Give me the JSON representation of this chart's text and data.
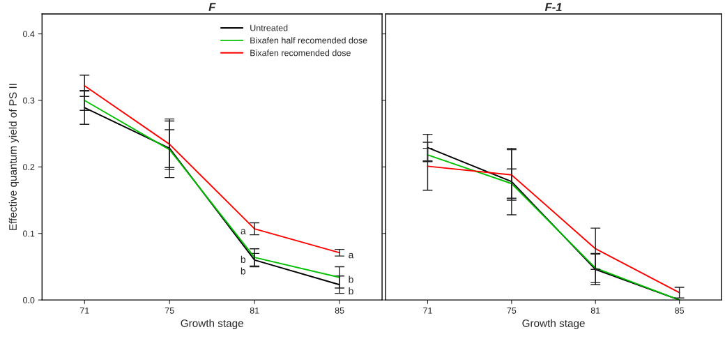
{
  "chart_data": [
    {
      "type": "line",
      "title": "F",
      "xlabel": "Growth stage",
      "ylabel": "Effective quantum yield of PS II",
      "categories": [
        "71",
        "75",
        "81",
        "85"
      ],
      "ylim": [
        0,
        0.43
      ],
      "yticks": [
        {
          "value": 0,
          "label": "0.0"
        },
        0.1,
        0.2,
        0.3,
        0.4
      ],
      "legend": "top right",
      "grid": false,
      "series": [
        {
          "name": "Untreated",
          "color": "#000000",
          "values": [
            0.289,
            0.228,
            0.06,
            0.023
          ],
          "errors": [
            0.025,
            0.044,
            0.01,
            0.013
          ]
        },
        {
          "name": "Bixafen half recomended dose",
          "color": "#00c000",
          "values": [
            0.3,
            0.226,
            0.064,
            0.034
          ],
          "errors": [
            0.015,
            0.03,
            0.013,
            0.016
          ]
        },
        {
          "name": "Bixafen recomended dose",
          "color": "#ff0000",
          "values": [
            0.322,
            0.234,
            0.107,
            0.071
          ],
          "errors": [
            0.016,
            0.035,
            0.009,
            0.005
          ]
        }
      ],
      "annotations": [
        {
          "text": "a",
          "x": "81",
          "y": 0.107
        },
        {
          "text": "b",
          "x": "81",
          "y": 0.064
        },
        {
          "text": "b",
          "x": "81",
          "y": 0.06
        },
        {
          "text": "a",
          "x": "85",
          "y": 0.071
        },
        {
          "text": "b",
          "x": "85",
          "y": 0.034
        },
        {
          "text": "b",
          "x": "85",
          "y": 0.023
        }
      ]
    },
    {
      "type": "line",
      "title": "F-1",
      "xlabel": "Growth stage",
      "categories": [
        "71",
        "75",
        "81",
        "85"
      ],
      "ylim": [
        0,
        0.43
      ],
      "yticks": [
        0,
        0.1,
        0.2,
        0.3,
        0.4
      ],
      "tick_labels": "x",
      "grid": false,
      "series": [
        {
          "color": "#000000",
          "values": [
            0.229,
            0.178,
            0.046,
            0.0
          ],
          "errors": [
            0.02,
            0.05,
            0.023,
            null
          ]
        },
        {
          "color": "#00c000",
          "values": [
            0.218,
            0.175,
            0.048,
            0.0
          ],
          "errors": [
            0.01,
            0.022,
            0.022,
            null
          ]
        },
        {
          "color": "#ff0000",
          "values": [
            0.201,
            0.188,
            0.077,
            0.011
          ],
          "errors": [
            0.036,
            0.038,
            0.031,
            0.008
          ]
        }
      ]
    }
  ]
}
